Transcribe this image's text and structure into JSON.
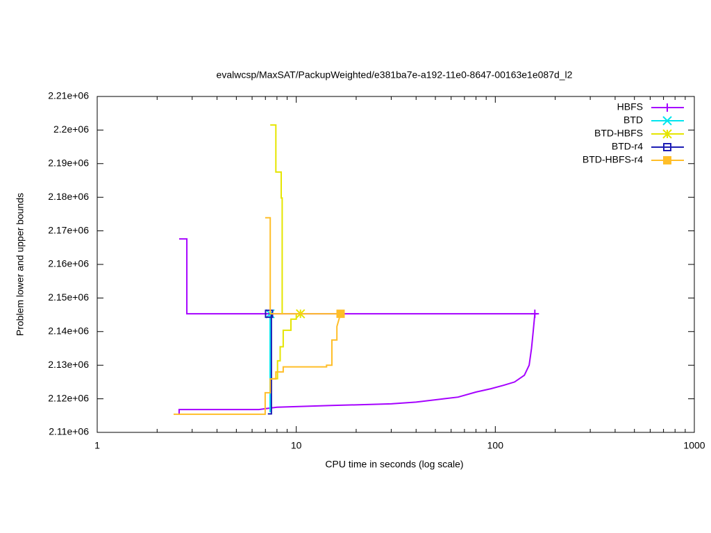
{
  "chart_data": {
    "type": "line",
    "title": "evalwcsp/MaxSAT/PackupWeighted/e381ba7e-a192-11e0-8647-00163e1e087d_l2",
    "xlabel": "CPU time in seconds (log scale)",
    "ylabel": "Problem lower and upper bounds",
    "xscale": "log",
    "legend": "upper right",
    "xlim": [
      1,
      1000
    ],
    "xticks": [
      1,
      10,
      100,
      1000
    ],
    "ylim": [
      2110000,
      2210000
    ],
    "yticks": [
      {
        "value": 2110000,
        "label": "2.11e+06"
      },
      {
        "value": 2120000,
        "label": "2.12e+06"
      },
      {
        "value": 2130000,
        "label": "2.13e+06"
      },
      {
        "value": 2140000,
        "label": "2.14e+06"
      },
      {
        "value": 2150000,
        "label": "2.15e+06"
      },
      {
        "value": 2160000,
        "label": "2.16e+06"
      },
      {
        "value": 2170000,
        "label": "2.17e+06"
      },
      {
        "value": 2180000,
        "label": "2.18e+06"
      },
      {
        "value": 2190000,
        "label": "2.19e+06"
      },
      {
        "value": 2200000,
        "label": "2.2e+06"
      },
      {
        "value": 2210000,
        "label": "2.21e+06"
      }
    ],
    "series": [
      {
        "name": "HBFS",
        "color": "#a500ff",
        "marker": "plus",
        "x": [
          2.58,
          2.82,
          2.82,
          162.8,
          null,
          2.58,
          2.58,
          6.5,
          8,
          15,
          30,
          40,
          55,
          65,
          80,
          95,
          110,
          125,
          140,
          148,
          152,
          155,
          158
        ],
        "values": [
          2167600,
          2167600,
          2145300,
          2145300,
          null,
          2115200,
          2116800,
          2116800,
          2117500,
          2118000,
          2118500,
          2119000,
          2120000,
          2120500,
          2122000,
          2123000,
          2124000,
          2125000,
          2127000,
          2130000,
          2135000,
          2140000,
          2145300
        ]
      },
      {
        "name": "BTD",
        "color": "#00e5ee",
        "marker": "cross",
        "x": [
          7.39,
          7.39
        ],
        "values": [
          2116000,
          2145300
        ]
      },
      {
        "name": "BTD-HBFS",
        "color": "#e5e500",
        "marker": "star",
        "x": [
          7.4,
          7.9,
          7.9,
          8.4,
          8.4,
          8.5,
          8.5,
          null,
          7.5,
          7.5,
          8.05,
          8.05,
          8.3,
          8.3,
          8.6,
          8.6,
          9.4,
          9.4,
          10.0,
          10.0,
          10.5
        ],
        "values": [
          2201500,
          2201500,
          2187500,
          2187500,
          2179800,
          2179800,
          2145300,
          null,
          2122000,
          2126000,
          2126000,
          2131300,
          2131300,
          2135500,
          2135500,
          2140400,
          2140400,
          2143700,
          2143700,
          2145300,
          2145300
        ]
      },
      {
        "name": "BTD-r4",
        "color": "#1c1cb4",
        "marker": "square",
        "x": [
          7.2,
          7.5,
          7.5,
          7.3
        ],
        "values": [
          2115500,
          2115500,
          2145300,
          2145300
        ]
      },
      {
        "name": "BTD-HBFS-r4",
        "color": "#ffbe28",
        "marker": "filled-square",
        "x": [
          6.98,
          7.4,
          7.4,
          16.7,
          null,
          2.42,
          6.98,
          6.98,
          7.4,
          7.4,
          7.9,
          7.9,
          8.6,
          8.6,
          14.2,
          14.2,
          15.1,
          15.1,
          16.0,
          16.0,
          16.7
        ],
        "values": [
          2173900,
          2173900,
          2145300,
          2145300,
          null,
          2115400,
          2115400,
          2121800,
          2121800,
          2125900,
          2125900,
          2128000,
          2128000,
          2129500,
          2129500,
          2130000,
          2130000,
          2137500,
          2137500,
          2141500,
          2145300
        ]
      }
    ]
  }
}
